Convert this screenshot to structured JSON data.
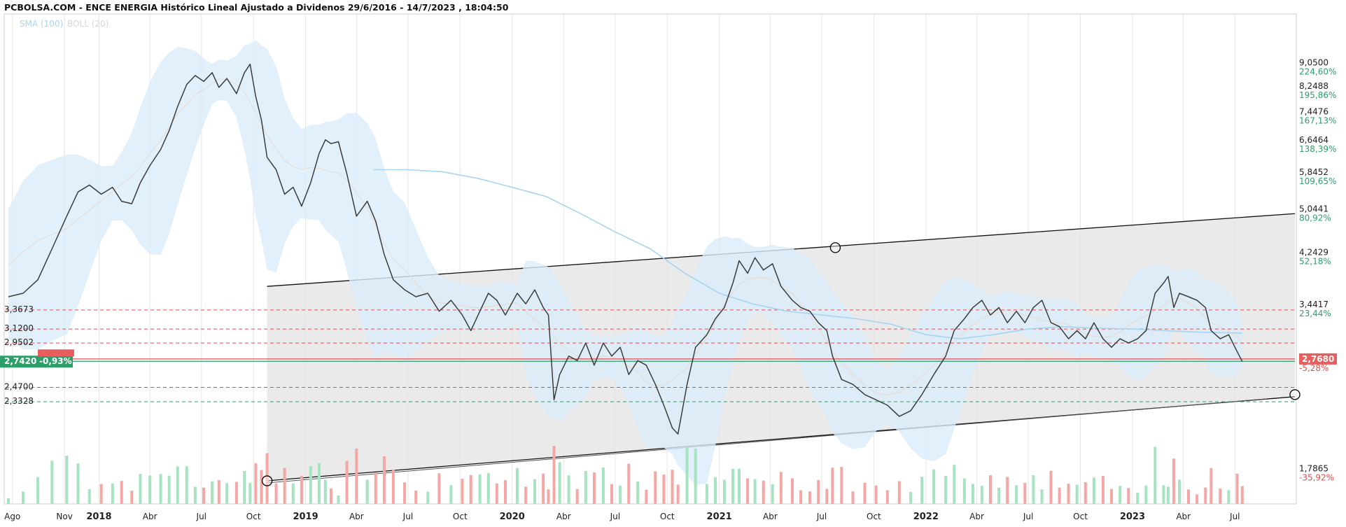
{
  "header": {
    "title": "PCBOLSA.COM - ENCE ENERGIA Histórico Lineal Ajustado a Dividenos 29/6/2016 - 14/7/2023 , 18:04:50",
    "legend_sma": "SMA (100)",
    "legend_boll": "BOLL (20)"
  },
  "colors": {
    "price": "#3c3c3c",
    "sma": "#a8d4f2",
    "band_fill": "#d9ecfa",
    "channel_fill": "#e3e3e3",
    "grid": "#e6e6e6",
    "pct_positive": "#2e9e6a",
    "pct_negative": "#e05050",
    "vol_up": "#a6e3c0",
    "vol_down": "#f4a7a4",
    "current_badge": "#2e9e6a",
    "last_badge": "#e85d5d"
  },
  "chart_data": {
    "type": "line",
    "title": "PCBOLSA.COM - ENCE ENERGIA Histórico Lineal Ajustado a Dividenos 29/6/2016 - 14/7/2023 , 18:04:50",
    "y_scale": "log",
    "ylim": [
      1.55,
      11.0
    ],
    "x_range": [
      "2017-07-20",
      "2023-10-15"
    ],
    "grid": true,
    "series": [
      {
        "name": "ENCE ENERGIA",
        "points": [
          [
            "2017-07-25",
            3.55
          ],
          [
            "2017-08-20",
            3.6
          ],
          [
            "2017-09-15",
            3.8
          ],
          [
            "2017-10-10",
            4.3
          ],
          [
            "2017-11-05",
            4.9
          ],
          [
            "2017-11-25",
            5.4
          ],
          [
            "2017-12-15",
            5.55
          ],
          [
            "2018-01-05",
            5.35
          ],
          [
            "2018-01-25",
            5.5
          ],
          [
            "2018-02-10",
            5.2
          ],
          [
            "2018-02-28",
            5.15
          ],
          [
            "2018-03-15",
            5.6
          ],
          [
            "2018-04-01",
            6.0
          ],
          [
            "2018-04-20",
            6.4
          ],
          [
            "2018-05-05",
            6.9
          ],
          [
            "2018-05-20",
            7.6
          ],
          [
            "2018-06-05",
            8.3
          ],
          [
            "2018-06-20",
            8.6
          ],
          [
            "2018-07-05",
            8.4
          ],
          [
            "2018-07-20",
            8.7
          ],
          [
            "2018-08-01",
            8.2
          ],
          [
            "2018-08-15",
            8.5
          ],
          [
            "2018-09-01",
            8.0
          ],
          [
            "2018-09-15",
            8.7
          ],
          [
            "2018-09-25",
            9.0
          ],
          [
            "2018-10-05",
            7.9
          ],
          [
            "2018-10-15",
            7.2
          ],
          [
            "2018-10-25",
            6.2
          ],
          [
            "2018-11-10",
            5.9
          ],
          [
            "2018-11-25",
            5.35
          ],
          [
            "2018-12-10",
            5.5
          ],
          [
            "2018-12-25",
            5.1
          ],
          [
            "2019-01-10",
            5.6
          ],
          [
            "2019-01-25",
            6.3
          ],
          [
            "2019-02-05",
            6.65
          ],
          [
            "2019-02-15",
            6.55
          ],
          [
            "2019-02-28",
            6.6
          ],
          [
            "2019-03-15",
            5.8
          ],
          [
            "2019-04-01",
            4.9
          ],
          [
            "2019-04-20",
            5.2
          ],
          [
            "2019-05-05",
            4.8
          ],
          [
            "2019-05-20",
            4.2
          ],
          [
            "2019-06-05",
            3.8
          ],
          [
            "2019-06-25",
            3.65
          ],
          [
            "2019-07-15",
            3.55
          ],
          [
            "2019-08-05",
            3.6
          ],
          [
            "2019-08-25",
            3.35
          ],
          [
            "2019-09-15",
            3.5
          ],
          [
            "2019-10-05",
            3.3
          ],
          [
            "2019-10-20",
            3.1
          ],
          [
            "2019-11-05",
            3.35
          ],
          [
            "2019-11-20",
            3.6
          ],
          [
            "2019-12-05",
            3.5
          ],
          [
            "2019-12-20",
            3.3
          ],
          [
            "2020-01-10",
            3.6
          ],
          [
            "2020-01-25",
            3.45
          ],
          [
            "2020-02-10",
            3.65
          ],
          [
            "2020-02-25",
            3.4
          ],
          [
            "2020-03-05",
            3.3
          ],
          [
            "2020-03-15",
            2.35
          ],
          [
            "2020-03-25",
            2.6
          ],
          [
            "2020-04-10",
            2.8
          ],
          [
            "2020-04-25",
            2.75
          ],
          [
            "2020-05-10",
            2.95
          ],
          [
            "2020-05-25",
            2.7
          ],
          [
            "2020-06-10",
            2.95
          ],
          [
            "2020-06-25",
            2.8
          ],
          [
            "2020-07-10",
            2.9
          ],
          [
            "2020-07-25",
            2.6
          ],
          [
            "2020-08-10",
            2.75
          ],
          [
            "2020-08-25",
            2.7
          ],
          [
            "2020-09-10",
            2.5
          ],
          [
            "2020-09-25",
            2.3
          ],
          [
            "2020-10-10",
            2.1
          ],
          [
            "2020-10-20",
            2.05
          ],
          [
            "2020-11-05",
            2.5
          ],
          [
            "2020-11-20",
            2.9
          ],
          [
            "2020-12-10",
            3.05
          ],
          [
            "2020-12-25",
            3.25
          ],
          [
            "2021-01-10",
            3.4
          ],
          [
            "2021-01-25",
            3.75
          ],
          [
            "2021-02-05",
            4.1
          ],
          [
            "2021-02-20",
            3.9
          ],
          [
            "2021-03-05",
            4.15
          ],
          [
            "2021-03-20",
            3.95
          ],
          [
            "2021-04-05",
            4.05
          ],
          [
            "2021-04-20",
            3.7
          ],
          [
            "2021-05-10",
            3.5
          ],
          [
            "2021-05-25",
            3.4
          ],
          [
            "2021-06-10",
            3.35
          ],
          [
            "2021-06-25",
            3.2
          ],
          [
            "2021-07-10",
            3.1
          ],
          [
            "2021-07-20",
            2.8
          ],
          [
            "2021-08-05",
            2.55
          ],
          [
            "2021-08-25",
            2.5
          ],
          [
            "2021-09-15",
            2.4
          ],
          [
            "2021-10-05",
            2.35
          ],
          [
            "2021-10-25",
            2.3
          ],
          [
            "2021-11-15",
            2.2
          ],
          [
            "2021-12-05",
            2.25
          ],
          [
            "2021-12-25",
            2.4
          ],
          [
            "2022-01-15",
            2.6
          ],
          [
            "2022-02-05",
            2.8
          ],
          [
            "2022-02-20",
            3.1
          ],
          [
            "2022-03-10",
            3.25
          ],
          [
            "2022-03-25",
            3.4
          ],
          [
            "2022-04-10",
            3.5
          ],
          [
            "2022-04-25",
            3.3
          ],
          [
            "2022-05-10",
            3.4
          ],
          [
            "2022-05-25",
            3.2
          ],
          [
            "2022-06-10",
            3.35
          ],
          [
            "2022-06-25",
            3.2
          ],
          [
            "2022-07-10",
            3.4
          ],
          [
            "2022-07-25",
            3.5
          ],
          [
            "2022-08-10",
            3.2
          ],
          [
            "2022-08-25",
            3.15
          ],
          [
            "2022-09-10",
            3.0
          ],
          [
            "2022-09-25",
            3.1
          ],
          [
            "2022-10-10",
            3.0
          ],
          [
            "2022-10-25",
            3.2
          ],
          [
            "2022-11-10",
            3.0
          ],
          [
            "2022-11-25",
            2.9
          ],
          [
            "2022-12-10",
            3.0
          ],
          [
            "2022-12-25",
            2.95
          ],
          [
            "2023-01-10",
            3.0
          ],
          [
            "2023-01-25",
            3.1
          ],
          [
            "2023-02-10",
            3.6
          ],
          [
            "2023-02-25",
            3.75
          ],
          [
            "2023-03-05",
            3.85
          ],
          [
            "2023-03-15",
            3.4
          ],
          [
            "2023-03-25",
            3.6
          ],
          [
            "2023-04-10",
            3.55
          ],
          [
            "2023-04-25",
            3.5
          ],
          [
            "2023-05-10",
            3.4
          ],
          [
            "2023-05-20",
            3.1
          ],
          [
            "2023-06-05",
            3.0
          ],
          [
            "2023-06-20",
            3.05
          ],
          [
            "2023-07-05",
            2.85
          ],
          [
            "2023-07-14",
            2.74
          ]
        ]
      },
      {
        "name": "SMA (100)",
        "points": [
          [
            "2019-05-01",
            5.9
          ],
          [
            "2019-07-01",
            5.9
          ],
          [
            "2019-09-01",
            5.85
          ],
          [
            "2019-11-01",
            5.7
          ],
          [
            "2020-01-01",
            5.5
          ],
          [
            "2020-03-01",
            5.3
          ],
          [
            "2020-05-01",
            4.95
          ],
          [
            "2020-07-01",
            4.6
          ],
          [
            "2020-09-01",
            4.3
          ],
          [
            "2020-11-01",
            3.9
          ],
          [
            "2021-01-01",
            3.6
          ],
          [
            "2021-03-01",
            3.45
          ],
          [
            "2021-05-01",
            3.35
          ],
          [
            "2021-07-01",
            3.3
          ],
          [
            "2021-09-01",
            3.25
          ],
          [
            "2021-11-01",
            3.18
          ],
          [
            "2022-01-01",
            3.05
          ],
          [
            "2022-03-01",
            3.0
          ],
          [
            "2022-05-01",
            3.05
          ],
          [
            "2022-07-01",
            3.12
          ],
          [
            "2022-09-01",
            3.15
          ],
          [
            "2022-11-01",
            3.13
          ],
          [
            "2023-01-01",
            3.12
          ],
          [
            "2023-03-01",
            3.1
          ],
          [
            "2023-05-01",
            3.08
          ],
          [
            "2023-07-14",
            3.07
          ]
        ]
      }
    ],
    "channel": {
      "upper": [
        [
          "2018-10-25",
          3.7
        ],
        [
          "2023-10-15",
          4.95
        ]
      ],
      "lower": [
        [
          "2018-10-25",
          1.7
        ],
        [
          "2023-10-15",
          2.38
        ]
      ],
      "markers": [
        [
          "2018-10-25",
          1.7
        ],
        [
          "2021-07-25",
          4.32
        ],
        [
          "2023-10-15",
          2.4
        ]
      ]
    },
    "levels": {
      "dashed_red": [
        3.3673,
        3.12,
        2.9502
      ],
      "dashed_green": [
        2.47,
        2.3328
      ],
      "solid_red": 2.768,
      "solid_green": 2.742
    },
    "y_ticks": [
      {
        "value": "9,0500",
        "pct": "224,60%",
        "level": 9.05
      },
      {
        "value": "8,2488",
        "pct": "195,86%",
        "level": 8.2488
      },
      {
        "value": "7,4476",
        "pct": "167,13%",
        "level": 7.4476
      },
      {
        "value": "6,6464",
        "pct": "138,39%",
        "level": 6.6464
      },
      {
        "value": "5,8452",
        "pct": "109,65%",
        "level": 5.8452
      },
      {
        "value": "5,0441",
        "pct": "80,92%",
        "level": 5.0441
      },
      {
        "value": "4,2429",
        "pct": "52,18%",
        "level": 4.2429
      },
      {
        "value": "3,4417",
        "pct": "23,44%",
        "level": 3.4417
      },
      {
        "value": "2,7680",
        "pct": "-5,28%",
        "level": 2.768
      },
      {
        "value": "1,7865",
        "pct": "-35,92%",
        "level": 1.7865
      }
    ],
    "left_labels": [
      {
        "text": "3,3673",
        "level": 3.3673
      },
      {
        "text": "3,1200",
        "level": 3.12
      },
      {
        "text": "2,9502",
        "level": 2.9502
      },
      {
        "text": "2,4700",
        "level": 2.47
      },
      {
        "text": "2,3328",
        "level": 2.3328
      }
    ],
    "current_badge": {
      "price": "2,7420",
      "change": "-0,93%",
      "level": 2.742
    },
    "last_badge": {
      "text": "2,7680",
      "level": 2.768
    },
    "x_ticks": [
      {
        "label": "Ago",
        "date": "2017-08-01",
        "year": false
      },
      {
        "label": "Nov",
        "date": "2017-11-01",
        "year": false
      },
      {
        "label": "2018",
        "date": "2018-01-01",
        "year": true
      },
      {
        "label": "Abr",
        "date": "2018-04-01",
        "year": false
      },
      {
        "label": "Jul",
        "date": "2018-07-01",
        "year": false
      },
      {
        "label": "Oct",
        "date": "2018-10-01",
        "year": false
      },
      {
        "label": "2019",
        "date": "2019-01-01",
        "year": true
      },
      {
        "label": "Abr",
        "date": "2019-04-01",
        "year": false
      },
      {
        "label": "Jul",
        "date": "2019-07-01",
        "year": false
      },
      {
        "label": "Oct",
        "date": "2019-10-01",
        "year": false
      },
      {
        "label": "2020",
        "date": "2020-01-01",
        "year": true
      },
      {
        "label": "Abr",
        "date": "2020-04-01",
        "year": false
      },
      {
        "label": "Jul",
        "date": "2020-07-01",
        "year": false
      },
      {
        "label": "Oct",
        "date": "2020-10-01",
        "year": false
      },
      {
        "label": "2021",
        "date": "2021-01-01",
        "year": true
      },
      {
        "label": "Abr",
        "date": "2021-04-01",
        "year": false
      },
      {
        "label": "Jul",
        "date": "2021-07-01",
        "year": false
      },
      {
        "label": "Oct",
        "date": "2021-10-01",
        "year": false
      },
      {
        "label": "2022",
        "date": "2022-01-01",
        "year": true
      },
      {
        "label": "Abr",
        "date": "2022-04-01",
        "year": false
      },
      {
        "label": "Jul",
        "date": "2022-07-01",
        "year": false
      },
      {
        "label": "Oct",
        "date": "2022-10-01",
        "year": false
      },
      {
        "label": "2023",
        "date": "2023-01-01",
        "year": true
      },
      {
        "label": "Abr",
        "date": "2023-04-01",
        "year": false
      },
      {
        "label": "Jul",
        "date": "2023-07-01",
        "year": false
      }
    ]
  }
}
